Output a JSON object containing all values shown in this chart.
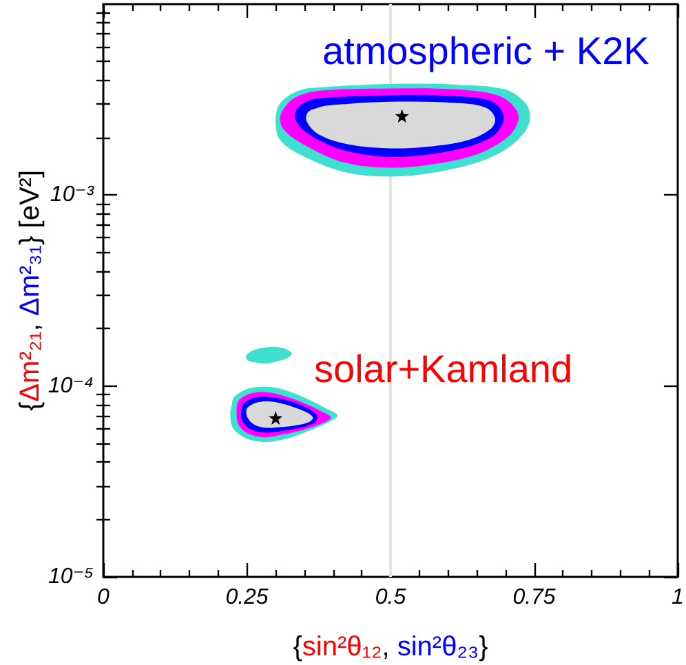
{
  "chart_data": {
    "type": "area",
    "xlabel": "{sin²θ₁₂, sin²θ₂₃}",
    "ylabel": "{Δm²₂₁, Δm²₃₁} [eV²]",
    "xlim": [
      0,
      1
    ],
    "xticks": [
      0,
      0.25,
      0.5,
      0.75,
      1
    ],
    "ylim": [
      1e-05,
      0.01
    ],
    "yticks": [
      {
        "value": 1e-05,
        "label": "10⁻⁵"
      },
      {
        "value": 0.0001,
        "label": "10⁻⁴"
      },
      {
        "value": 0.001,
        "label": "10⁻³"
      }
    ],
    "log": "y",
    "grid": false,
    "ref_lines": [
      {
        "axis": "x",
        "value": 0.5,
        "color": "#e4e4e4"
      }
    ],
    "annotations": [
      "atmospheric + K2K",
      "solar+Kamland"
    ],
    "series": [
      {
        "color": "#40e0d0",
        "x": [
          0.38,
          0.5,
          0.619,
          0.7,
          0.735,
          0.743,
          0.735,
          0.707,
          0.659,
          0.58,
          0.5,
          0.42,
          0.348,
          0.308,
          0.3,
          0.308,
          0.34
        ],
        "values": [
          0.00367,
          0.00382,
          0.00378,
          0.00357,
          0.00303,
          0.00256,
          0.00217,
          0.00179,
          0.00151,
          0.00132,
          0.00125,
          0.00132,
          0.0016,
          0.00194,
          0.00243,
          0.00303,
          0.00352
        ]
      },
      {
        "color": "#ff00ff",
        "x": [
          0.38,
          0.5,
          0.619,
          0.691,
          0.719,
          0.722,
          0.703,
          0.652,
          0.58,
          0.5,
          0.42,
          0.356,
          0.316,
          0.308,
          0.324,
          0.348
        ],
        "values": [
          0.00353,
          0.00362,
          0.00357,
          0.00329,
          0.00279,
          0.00243,
          0.002,
          0.00164,
          0.00146,
          0.00139,
          0.00148,
          0.00179,
          0.00217,
          0.00256,
          0.00308,
          0.00338
        ]
      },
      {
        "color": "#0000ff",
        "x": [
          0.38,
          0.5,
          0.619,
          0.675,
          0.695,
          0.695,
          0.675,
          0.619,
          0.54,
          0.476,
          0.412,
          0.36,
          0.336,
          0.336,
          0.356
        ],
        "values": [
          0.00322,
          0.00333,
          0.00329,
          0.00311,
          0.00271,
          0.00236,
          0.002,
          0.00174,
          0.0016,
          0.0016,
          0.00174,
          0.00206,
          0.00243,
          0.00279,
          0.00311
        ]
      },
      {
        "color": "#d9d9d9",
        "x": [
          0.388,
          0.5,
          0.619,
          0.667,
          0.682,
          0.675,
          0.635,
          0.564,
          0.492,
          0.428,
          0.376,
          0.354,
          0.356,
          0.372
        ],
        "values": [
          0.00294,
          0.00308,
          0.00303,
          0.00286,
          0.00252,
          0.00223,
          0.00194,
          0.00179,
          0.00176,
          0.00184,
          0.00207,
          0.00243,
          0.00271,
          0.00286
        ]
      },
      {
        "color": "#40e0d0",
        "x": [
          0.248,
          0.256,
          0.272,
          0.292,
          0.312,
          0.325,
          0.328,
          0.32,
          0.304,
          0.284,
          0.264,
          0.252
        ],
        "values": [
          0.000143,
          0.000151,
          0.000157,
          0.00016,
          0.000158,
          0.000152,
          0.000147,
          0.00014,
          0.000135,
          0.000131,
          0.000133,
          0.000136
        ]
      },
      {
        "color": "#40e0d0",
        "x": [
          0.228,
          0.252,
          0.284,
          0.316,
          0.356,
          0.388,
          0.408,
          0.392,
          0.356,
          0.316,
          0.28,
          0.248,
          0.226,
          0.221,
          0.224
        ],
        "values": [
          8.77e-05,
          9.68e-05,
          9.91e-05,
          9.53e-05,
          8.53e-05,
          7.62e-05,
          7.02e-05,
          6.46e-05,
          5.79e-05,
          5.27e-05,
          5.09e-05,
          5.33e-05,
          6.01e-05,
          7.02e-05,
          8.07e-05
        ]
      },
      {
        "color": "#ff00ff",
        "x": [
          0.236,
          0.256,
          0.284,
          0.316,
          0.352,
          0.38,
          0.396,
          0.38,
          0.348,
          0.312,
          0.28,
          0.252,
          0.236,
          0.232
        ],
        "values": [
          8.39e-05,
          9.12e-05,
          9.27e-05,
          8.85e-05,
          8.07e-05,
          7.35e-05,
          6.84e-05,
          6.35e-05,
          5.89e-05,
          5.56e-05,
          5.38e-05,
          5.63e-05,
          6.22e-05,
          7.23e-05
        ]
      },
      {
        "color": "#0000ff",
        "x": [
          0.244,
          0.26,
          0.284,
          0.316,
          0.348,
          0.368,
          0.373,
          0.365,
          0.34,
          0.308,
          0.28,
          0.256,
          0.242,
          0.24
        ],
        "values": [
          8.07e-05,
          8.63e-05,
          8.77e-05,
          8.49e-05,
          7.85e-05,
          7.23e-05,
          6.84e-05,
          6.35e-05,
          6.01e-05,
          5.79e-05,
          5.7e-05,
          5.94e-05,
          6.53e-05,
          7.35e-05
        ]
      },
      {
        "color": "#d9d9d9",
        "x": [
          0.252,
          0.268,
          0.288,
          0.316,
          0.344,
          0.36,
          0.365,
          0.356,
          0.336,
          0.308,
          0.28,
          0.261,
          0.251,
          0.249
        ],
        "values": [
          7.76e-05,
          8.2e-05,
          8.3e-05,
          8.02e-05,
          7.5e-05,
          7.1e-05,
          6.76e-05,
          6.43e-05,
          6.22e-05,
          6.08e-05,
          6.05e-05,
          6.32e-05,
          6.84e-05,
          7.35e-05
        ]
      },
      {
        "type": "scatter",
        "color": "#000000",
        "marker": "star",
        "x": [
          0.52,
          0.3
        ],
        "values": [
          0.0026,
          6.8e-05
        ]
      }
    ]
  }
}
